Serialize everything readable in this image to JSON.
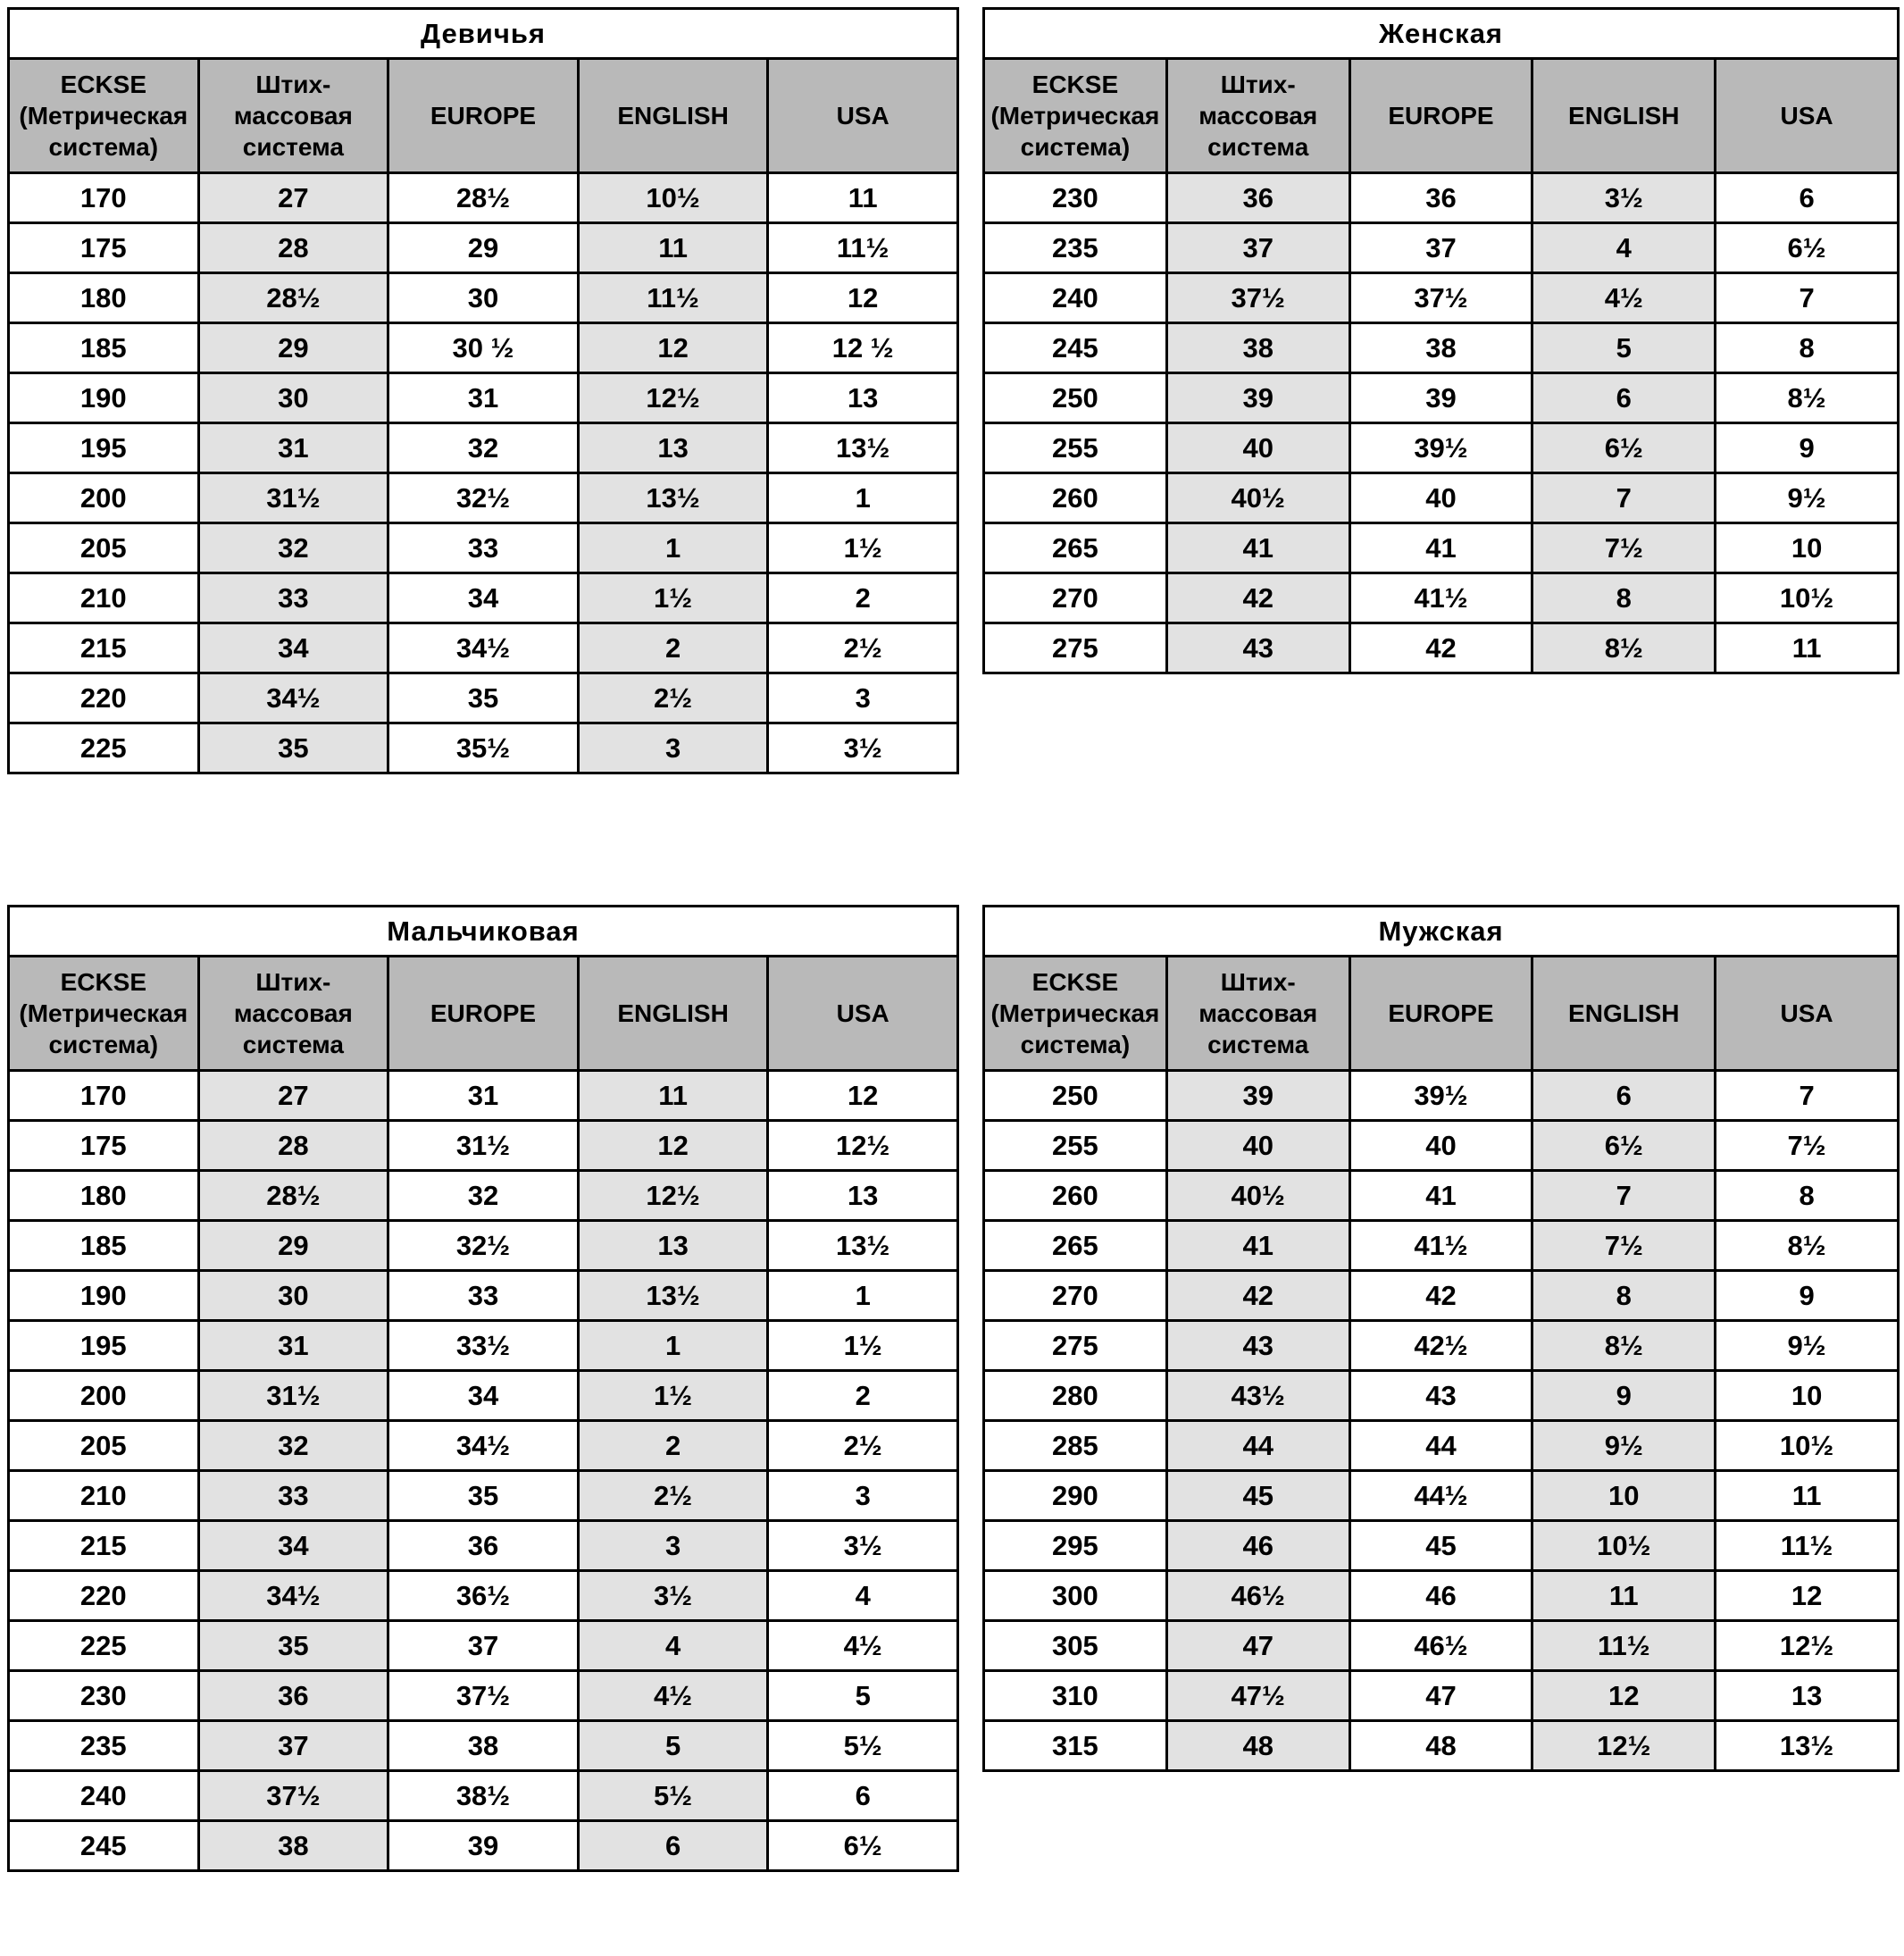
{
  "colors": {
    "title_bg": "#dedede",
    "header_bg": "#b9b9b9",
    "shaded_column_bg": "#e2e2e2",
    "cell_bg": "#ffffff",
    "border": "#000000",
    "text": "#000000"
  },
  "headers": [
    {
      "lines": [
        "ECKSE",
        "(Метрическая",
        "система)"
      ]
    },
    {
      "lines": [
        "Штих-",
        "массовая",
        "система"
      ]
    },
    {
      "lines": [
        "EUROPE"
      ]
    },
    {
      "lines": [
        "ENGLISH"
      ]
    },
    {
      "lines": [
        "USA"
      ]
    }
  ],
  "tables": [
    {
      "id": "girls",
      "title": "Девичья",
      "rows": [
        [
          "170",
          "27",
          "28½",
          "10½",
          "11"
        ],
        [
          "175",
          "28",
          "29",
          "11",
          "11½"
        ],
        [
          "180",
          "28½",
          "30",
          "11½",
          "12"
        ],
        [
          "185",
          "29",
          "30 ½",
          "12",
          "12 ½"
        ],
        [
          "190",
          "30",
          "31",
          "12½",
          "13"
        ],
        [
          "195",
          "31",
          "32",
          "13",
          "13½"
        ],
        [
          "200",
          "31½",
          "32½",
          "13½",
          "1"
        ],
        [
          "205",
          "32",
          "33",
          "1",
          "1½"
        ],
        [
          "210",
          "33",
          "34",
          "1½",
          "2"
        ],
        [
          "215",
          "34",
          "34½",
          "2",
          "2½"
        ],
        [
          "220",
          "34½",
          "35",
          "2½",
          "3"
        ],
        [
          "225",
          "35",
          "35½",
          "3",
          "3½"
        ]
      ]
    },
    {
      "id": "women",
      "title": "Женская",
      "rows": [
        [
          "230",
          "36",
          "36",
          "3½",
          "6"
        ],
        [
          "235",
          "37",
          "37",
          "4",
          "6½"
        ],
        [
          "240",
          "37½",
          "37½",
          "4½",
          "7"
        ],
        [
          "245",
          "38",
          "38",
          "5",
          "8"
        ],
        [
          "250",
          "39",
          "39",
          "6",
          "8½"
        ],
        [
          "255",
          "40",
          "39½",
          "6½",
          "9"
        ],
        [
          "260",
          "40½",
          "40",
          "7",
          "9½"
        ],
        [
          "265",
          "41",
          "41",
          "7½",
          "10"
        ],
        [
          "270",
          "42",
          "41½",
          "8",
          "10½"
        ],
        [
          "275",
          "43",
          "42",
          "8½",
          "11"
        ]
      ]
    },
    {
      "id": "boys",
      "title": "Мальчиковая",
      "rows": [
        [
          "170",
          "27",
          "31",
          "11",
          "12"
        ],
        [
          "175",
          "28",
          "31½",
          "12",
          "12½"
        ],
        [
          "180",
          "28½",
          "32",
          "12½",
          "13"
        ],
        [
          "185",
          "29",
          "32½",
          "13",
          "13½"
        ],
        [
          "190",
          "30",
          "33",
          "13½",
          "1"
        ],
        [
          "195",
          "31",
          "33½",
          "1",
          "1½"
        ],
        [
          "200",
          "31½",
          "34",
          "1½",
          "2"
        ],
        [
          "205",
          "32",
          "34½",
          "2",
          "2½"
        ],
        [
          "210",
          "33",
          "35",
          "2½",
          "3"
        ],
        [
          "215",
          "34",
          "36",
          "3",
          "3½"
        ],
        [
          "220",
          "34½",
          "36½",
          "3½",
          "4"
        ],
        [
          "225",
          "35",
          "37",
          "4",
          "4½"
        ],
        [
          "230",
          "36",
          "37½",
          "4½",
          "5"
        ],
        [
          "235",
          "37",
          "38",
          "5",
          "5½"
        ],
        [
          "240",
          "37½",
          "38½",
          "5½",
          "6"
        ],
        [
          "245",
          "38",
          "39",
          "6",
          "6½"
        ]
      ]
    },
    {
      "id": "men",
      "title": "Мужская",
      "rows": [
        [
          "250",
          "39",
          "39½",
          "6",
          "7"
        ],
        [
          "255",
          "40",
          "40",
          "6½",
          "7½"
        ],
        [
          "260",
          "40½",
          "41",
          "7",
          "8"
        ],
        [
          "265",
          "41",
          "41½",
          "7½",
          "8½"
        ],
        [
          "270",
          "42",
          "42",
          "8",
          "9"
        ],
        [
          "275",
          "43",
          "42½",
          "8½",
          "9½"
        ],
        [
          "280",
          "43½",
          "43",
          "9",
          "10"
        ],
        [
          "285",
          "44",
          "44",
          "9½",
          "10½"
        ],
        [
          "290",
          "45",
          "44½",
          "10",
          "11"
        ],
        [
          "295",
          "46",
          "45",
          "10½",
          "11½"
        ],
        [
          "300",
          "46½",
          "46",
          "11",
          "12"
        ],
        [
          "305",
          "47",
          "46½",
          "11½",
          "12½"
        ],
        [
          "310",
          "47½",
          "47",
          "12",
          "13"
        ],
        [
          "315",
          "48",
          "48",
          "12½",
          "13½"
        ]
      ]
    }
  ]
}
